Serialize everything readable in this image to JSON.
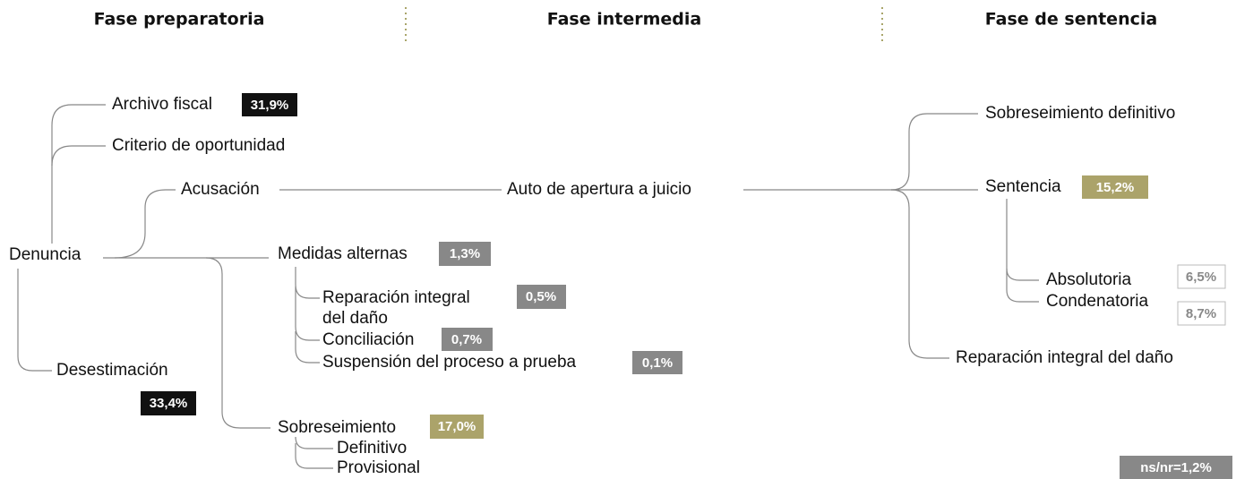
{
  "phases": [
    "Fase preparatoria",
    "Fase intermedia",
    "Fase de sentencia"
  ],
  "nodes": [
    {
      "label": "Denuncia"
    },
    {
      "label": "Archivo fiscal",
      "badge": "31,9%"
    },
    {
      "label": "Criterio de oportunidad"
    },
    {
      "label": "Acusación"
    },
    {
      "label": "Auto de apertura a juicio"
    },
    {
      "label": "Medidas alternas",
      "badge": "1,3%"
    },
    {
      "lines": [
        "Reparación integral",
        "del daño"
      ],
      "badge": "0,5%"
    },
    {
      "label": "Conciliación",
      "badge": "0,7%"
    },
    {
      "label": "Suspensión del proceso a prueba",
      "badge": "0,1%"
    },
    {
      "label": "Desestimación",
      "badge": "33,4%"
    },
    {
      "label": "Sobreseimiento",
      "badge": "17,0%"
    },
    {
      "label": "Definitivo"
    },
    {
      "label": "Provisional"
    },
    {
      "label": "Sobreseimiento definitivo"
    },
    {
      "label": "Sentencia",
      "badge": "15,2%"
    },
    {
      "label": "Absolutoria",
      "badge": "6,5%"
    },
    {
      "label": "Condenatoria",
      "badge": "8,7%"
    },
    {
      "label": "Reparación integral del daño"
    }
  ],
  "note": "ns/nr=1,2%"
}
